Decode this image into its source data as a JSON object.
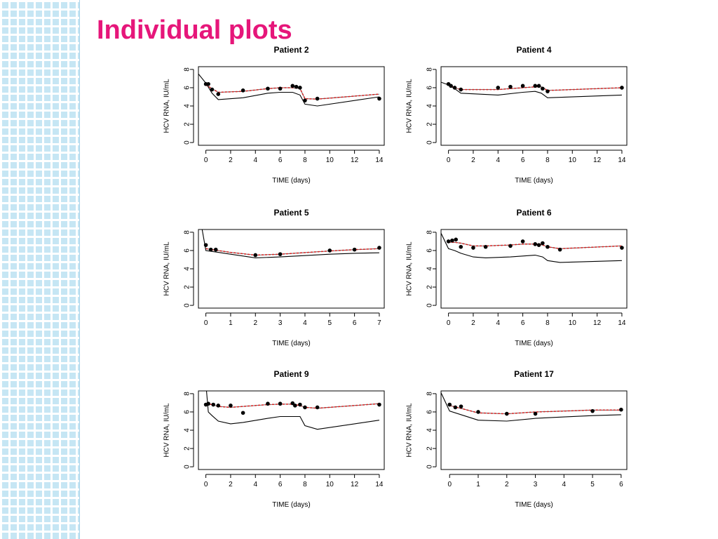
{
  "slide": {
    "title": "Individual plots",
    "title_color": "#e6167a",
    "side_strip_color": "#c6e6f4"
  },
  "chart_data": [
    {
      "type": "line",
      "title": "Patient  2",
      "xlabel": "TIME (days)",
      "ylabel": "HCV RNA, IU/mL",
      "xlim": [
        -0.6,
        14.4
      ],
      "ylim": [
        -0.3,
        8.3
      ],
      "xticks": [
        0,
        2,
        4,
        6,
        8,
        10,
        12,
        14
      ],
      "yticks": [
        0,
        2,
        4,
        6,
        8
      ],
      "series": [
        {
          "kind": "observed",
          "color": "#000000",
          "x": [
            0,
            0.2,
            0.5,
            1,
            3,
            5,
            6,
            7,
            7.3,
            7.6,
            8,
            9,
            14
          ],
          "y": [
            6.4,
            6.4,
            5.8,
            5.3,
            5.7,
            5.9,
            5.9,
            6.2,
            6.1,
            6.0,
            4.6,
            4.8,
            4.8
          ]
        },
        {
          "kind": "individual-fit",
          "color": "#d62020",
          "x": [
            0,
            0.5,
            1,
            3,
            5,
            6,
            7,
            7.6,
            8,
            9,
            14
          ],
          "y": [
            6.3,
            5.9,
            5.5,
            5.6,
            5.9,
            6.0,
            6.0,
            5.9,
            4.8,
            4.75,
            5.3
          ]
        },
        {
          "kind": "population-fit",
          "color": "#000000",
          "x": [
            -0.6,
            0,
            0.5,
            1,
            3,
            5,
            6,
            7,
            7.6,
            8,
            9,
            14
          ],
          "y": [
            7.5,
            6.5,
            5.4,
            4.7,
            4.9,
            5.4,
            5.5,
            5.5,
            5.2,
            4.2,
            4.0,
            5.0
          ]
        }
      ]
    },
    {
      "type": "line",
      "title": "Patient  4",
      "xlabel": "TIME (days)",
      "ylabel": "HCV RNA, IU/mL",
      "xlim": [
        -0.6,
        14.4
      ],
      "ylim": [
        -0.3,
        8.3
      ],
      "xticks": [
        0,
        2,
        4,
        6,
        8,
        10,
        12,
        14
      ],
      "yticks": [
        0,
        2,
        4,
        6,
        8
      ],
      "series": [
        {
          "kind": "observed",
          "color": "#000000",
          "x": [
            0,
            0.2,
            0.5,
            1,
            4,
            5,
            6,
            7,
            7.3,
            7.6,
            8,
            14
          ],
          "y": [
            6.4,
            6.2,
            6.0,
            5.8,
            6.0,
            6.1,
            6.2,
            6.2,
            6.2,
            5.9,
            5.6,
            6.0
          ]
        },
        {
          "kind": "individual-fit",
          "color": "#d62020",
          "x": [
            0,
            0.5,
            1,
            4,
            6,
            7,
            7.5,
            8,
            14
          ],
          "y": [
            6.3,
            6.0,
            5.8,
            5.8,
            6.0,
            6.1,
            6.1,
            5.7,
            6.0
          ]
        },
        {
          "kind": "population-fit",
          "color": "#000000",
          "x": [
            -0.6,
            0,
            0.5,
            1,
            4,
            6,
            7,
            7.5,
            8,
            14
          ],
          "y": [
            6.6,
            6.3,
            5.9,
            5.4,
            5.2,
            5.5,
            5.6,
            5.4,
            4.9,
            5.2
          ]
        }
      ]
    },
    {
      "type": "line",
      "title": "Patient  5",
      "xlabel": "TIME (days)",
      "ylabel": "HCV RNA, IU/mL",
      "xlim": [
        -0.3,
        7.2
      ],
      "ylim": [
        -0.3,
        8.3
      ],
      "xticks": [
        0,
        1,
        2,
        3,
        4,
        5,
        6,
        7
      ],
      "yticks": [
        0,
        2,
        4,
        6,
        8
      ],
      "series": [
        {
          "kind": "observed",
          "color": "#000000",
          "x": [
            0,
            0.2,
            0.4,
            2,
            3,
            5,
            6,
            7
          ],
          "y": [
            6.6,
            6.1,
            6.1,
            5.5,
            5.6,
            6.0,
            6.1,
            6.3
          ]
        },
        {
          "kind": "individual-fit",
          "color": "#d62020",
          "x": [
            0,
            0.5,
            1,
            2,
            3,
            5,
            6,
            7
          ],
          "y": [
            6.2,
            6.0,
            5.8,
            5.5,
            5.6,
            5.95,
            6.1,
            6.2
          ]
        },
        {
          "kind": "population-fit",
          "color": "#000000",
          "x": [
            -0.15,
            0,
            0.5,
            1,
            2,
            3,
            5,
            6,
            7
          ],
          "y": [
            8.3,
            6.0,
            5.8,
            5.6,
            5.2,
            5.3,
            5.6,
            5.7,
            5.75
          ]
        }
      ]
    },
    {
      "type": "line",
      "title": "Patient  6",
      "xlabel": "TIME (days)",
      "ylabel": "HCV RNA, IU/mL",
      "xlim": [
        -0.6,
        14.4
      ],
      "ylim": [
        -0.3,
        8.3
      ],
      "xticks": [
        0,
        2,
        4,
        6,
        8,
        10,
        12,
        14
      ],
      "yticks": [
        0,
        2,
        4,
        6,
        8
      ],
      "series": [
        {
          "kind": "observed",
          "color": "#000000",
          "x": [
            0,
            0.3,
            0.6,
            1,
            2,
            3,
            5,
            6,
            7,
            7.3,
            7.6,
            8,
            9,
            14
          ],
          "y": [
            7.0,
            7.1,
            7.2,
            6.4,
            6.3,
            6.4,
            6.5,
            7.0,
            6.7,
            6.6,
            6.8,
            6.4,
            6.1,
            6.3
          ]
        },
        {
          "kind": "individual-fit",
          "color": "#d62020",
          "x": [
            0,
            0.5,
            1,
            2,
            3,
            5,
            6,
            7,
            7.6,
            8,
            9,
            14
          ],
          "y": [
            6.9,
            6.9,
            6.8,
            6.5,
            6.5,
            6.6,
            6.7,
            6.7,
            6.6,
            6.4,
            6.2,
            6.5
          ]
        },
        {
          "kind": "population-fit",
          "color": "#000000",
          "x": [
            -0.6,
            0,
            0.5,
            1,
            2,
            3,
            5,
            6,
            7,
            7.6,
            8,
            9,
            14
          ],
          "y": [
            7.9,
            6.2,
            6.0,
            5.7,
            5.3,
            5.2,
            5.3,
            5.4,
            5.5,
            5.3,
            4.9,
            4.7,
            4.9
          ]
        }
      ]
    },
    {
      "type": "line",
      "title": "Patient  9",
      "xlabel": "TIME (days)",
      "ylabel": "HCV RNA, IU/mL",
      "xlim": [
        -0.6,
        14.4
      ],
      "ylim": [
        -0.3,
        8.3
      ],
      "xticks": [
        0,
        2,
        4,
        6,
        8,
        10,
        12,
        14
      ],
      "yticks": [
        0,
        2,
        4,
        6,
        8
      ],
      "series": [
        {
          "kind": "observed",
          "color": "#000000",
          "x": [
            0,
            0.2,
            0.6,
            1,
            2,
            3,
            5,
            6,
            7,
            7.2,
            7.6,
            8,
            9,
            14
          ],
          "y": [
            6.8,
            6.9,
            6.8,
            6.7,
            6.7,
            5.9,
            6.9,
            6.9,
            6.95,
            6.7,
            6.8,
            6.5,
            6.5,
            6.8
          ]
        },
        {
          "kind": "individual-fit",
          "color": "#d62020",
          "x": [
            0,
            0.5,
            1,
            2,
            3,
            5,
            6,
            7,
            7.6,
            8,
            9,
            14
          ],
          "y": [
            6.9,
            6.8,
            6.6,
            6.5,
            6.6,
            6.8,
            6.85,
            6.85,
            6.7,
            6.5,
            6.4,
            6.9
          ]
        },
        {
          "kind": "population-fit",
          "color": "#000000",
          "x": [
            0.05,
            0.2,
            0.5,
            1,
            2,
            3,
            5,
            6,
            7,
            7.6,
            8,
            9,
            14
          ],
          "y": [
            8.3,
            6.0,
            5.6,
            5.0,
            4.7,
            4.85,
            5.3,
            5.5,
            5.5,
            5.5,
            4.5,
            4.1,
            5.1
          ]
        }
      ]
    },
    {
      "type": "line",
      "title": "Patient  17",
      "xlabel": "TIME (days)",
      "ylabel": "HCV RNA, IU/mL",
      "xlim": [
        -0.3,
        6.2
      ],
      "ylim": [
        -0.3,
        8.3
      ],
      "xticks": [
        0,
        1,
        2,
        3,
        4,
        5,
        6
      ],
      "yticks": [
        0,
        2,
        4,
        6,
        8
      ],
      "series": [
        {
          "kind": "observed",
          "color": "#000000",
          "x": [
            0,
            0.2,
            0.4,
            1,
            2,
            3,
            5,
            6
          ],
          "y": [
            6.8,
            6.5,
            6.6,
            6.0,
            5.8,
            5.8,
            6.1,
            6.25
          ]
        },
        {
          "kind": "individual-fit",
          "color": "#d62020",
          "x": [
            0,
            0.5,
            1,
            2,
            3,
            4,
            5,
            6
          ],
          "y": [
            6.7,
            6.3,
            5.9,
            5.8,
            6.0,
            6.1,
            6.2,
            6.2
          ]
        },
        {
          "kind": "population-fit",
          "color": "#000000",
          "x": [
            -0.3,
            0,
            0.5,
            1,
            2,
            3,
            4,
            5,
            6
          ],
          "y": [
            8.1,
            6.1,
            5.6,
            5.1,
            5.0,
            5.3,
            5.45,
            5.6,
            5.7
          ]
        }
      ]
    }
  ]
}
